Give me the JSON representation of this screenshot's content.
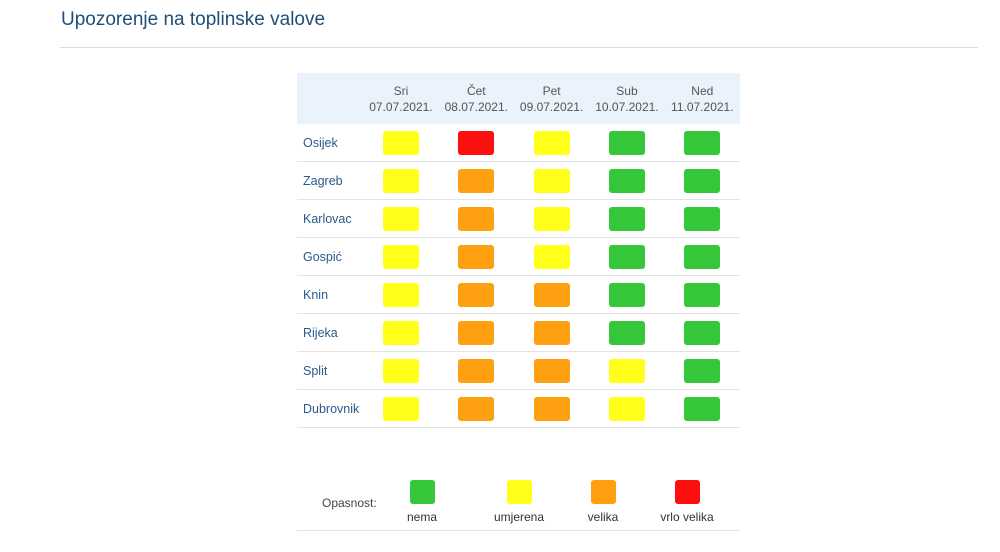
{
  "title": "Upozorenje na toplinske valove",
  "colors": {
    "nema": "#35c63a",
    "umjerena": "#ffff1a",
    "velika": "#ffa011",
    "vrlo_velika": "#fb0f0f"
  },
  "days": [
    {
      "name": "Sri",
      "date": "07.07.2021."
    },
    {
      "name": "Čet",
      "date": "08.07.2021."
    },
    {
      "name": "Pet",
      "date": "09.07.2021."
    },
    {
      "name": "Sub",
      "date": "10.07.2021."
    },
    {
      "name": "Ned",
      "date": "11.07.2021."
    }
  ],
  "rows": [
    {
      "city": "Osijek",
      "levels": [
        "umjerena",
        "vrlo_velika",
        "umjerena",
        "nema",
        "nema"
      ]
    },
    {
      "city": "Zagreb",
      "levels": [
        "umjerena",
        "velika",
        "umjerena",
        "nema",
        "nema"
      ]
    },
    {
      "city": "Karlovac",
      "levels": [
        "umjerena",
        "velika",
        "umjerena",
        "nema",
        "nema"
      ]
    },
    {
      "city": "Gospić",
      "levels": [
        "umjerena",
        "velika",
        "umjerena",
        "nema",
        "nema"
      ]
    },
    {
      "city": "Knin",
      "levels": [
        "umjerena",
        "velika",
        "velika",
        "nema",
        "nema"
      ]
    },
    {
      "city": "Rijeka",
      "levels": [
        "umjerena",
        "velika",
        "velika",
        "nema",
        "nema"
      ]
    },
    {
      "city": "Split",
      "levels": [
        "umjerena",
        "velika",
        "velika",
        "umjerena",
        "nema"
      ]
    },
    {
      "city": "Dubrovnik",
      "levels": [
        "umjerena",
        "velika",
        "velika",
        "umjerena",
        "nema"
      ]
    }
  ],
  "legend": {
    "label": "Opasnost:",
    "items": [
      {
        "key": "nema",
        "label": "nema"
      },
      {
        "key": "umjerena",
        "label": "umjerena"
      },
      {
        "key": "velika",
        "label": "velika"
      },
      {
        "key": "vrlo_velika",
        "label": "vrlo velika"
      }
    ]
  }
}
